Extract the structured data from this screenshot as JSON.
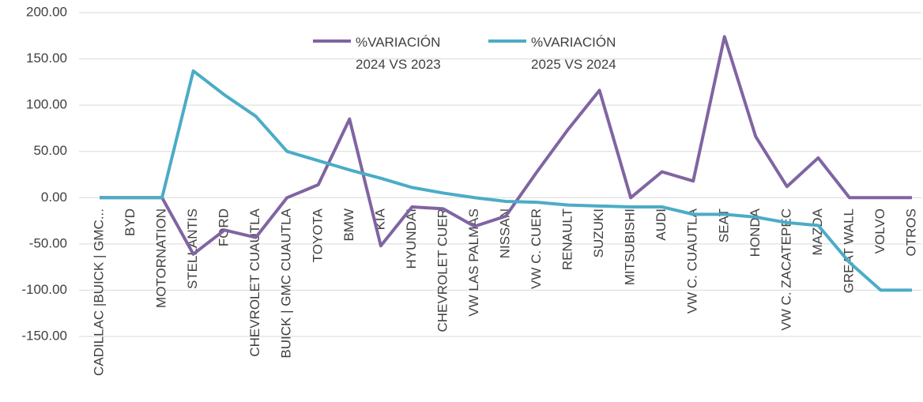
{
  "chart_data": {
    "type": "line",
    "categories": [
      "CADILLAC |BUICK | GMC...",
      "BYD",
      "MOTORNATION",
      "STELLANTIS",
      "FORD",
      "CHEVROLET CUAUTLA",
      "BUICK | GMC CUAUTLA",
      "TOYOTA",
      "BMW",
      "KIA",
      "HYUNDAI",
      "CHEVROLET CUER",
      "VW LAS PALMAS",
      "NISSAN",
      "VW C. CUER",
      "RENAULT",
      "SUZUKI",
      "MITSUBISHI",
      "AUDI",
      "VW C. CUAUTLA",
      "SEAT",
      "HONDA",
      "VW C. ZACATEPEC",
      "MAZDA",
      "GREAT WALL",
      "VOLVO",
      "OTROS"
    ],
    "series": [
      {
        "name": "%VARIACIÓN 2024 VS 2023",
        "color": "#8064a2",
        "values": [
          0,
          0,
          0,
          -61,
          -35,
          -43,
          0,
          14,
          85,
          -52,
          -10,
          -12,
          -31,
          -20,
          28,
          74,
          116,
          0,
          28,
          18,
          174,
          66,
          12,
          43,
          0,
          0,
          0
        ]
      },
      {
        "name": "%VARIACIÓN 2025 VS 2024",
        "color": "#4bacc6",
        "values": [
          0,
          0,
          0,
          137,
          111,
          88,
          50,
          40,
          30,
          21,
          11,
          5,
          0,
          -4,
          -5,
          -8,
          -9,
          -10,
          -10,
          -18,
          -18,
          -21,
          -27,
          -30,
          -70,
          -100,
          -100
        ]
      }
    ],
    "ylim": [
      -150,
      200
    ],
    "yticks": [
      {
        "value": -150,
        "label": "-150.00"
      },
      {
        "value": -100,
        "label": "-100.00"
      },
      {
        "value": -50,
        "label": "-50.00"
      },
      {
        "value": 0,
        "label": "0.00"
      },
      {
        "value": 50,
        "label": "50.00"
      },
      {
        "value": 100,
        "label": "100.00"
      },
      {
        "value": 150,
        "label": "150.00"
      },
      {
        "value": 200,
        "label": "200.00"
      }
    ],
    "grid": true,
    "legend": "top"
  }
}
